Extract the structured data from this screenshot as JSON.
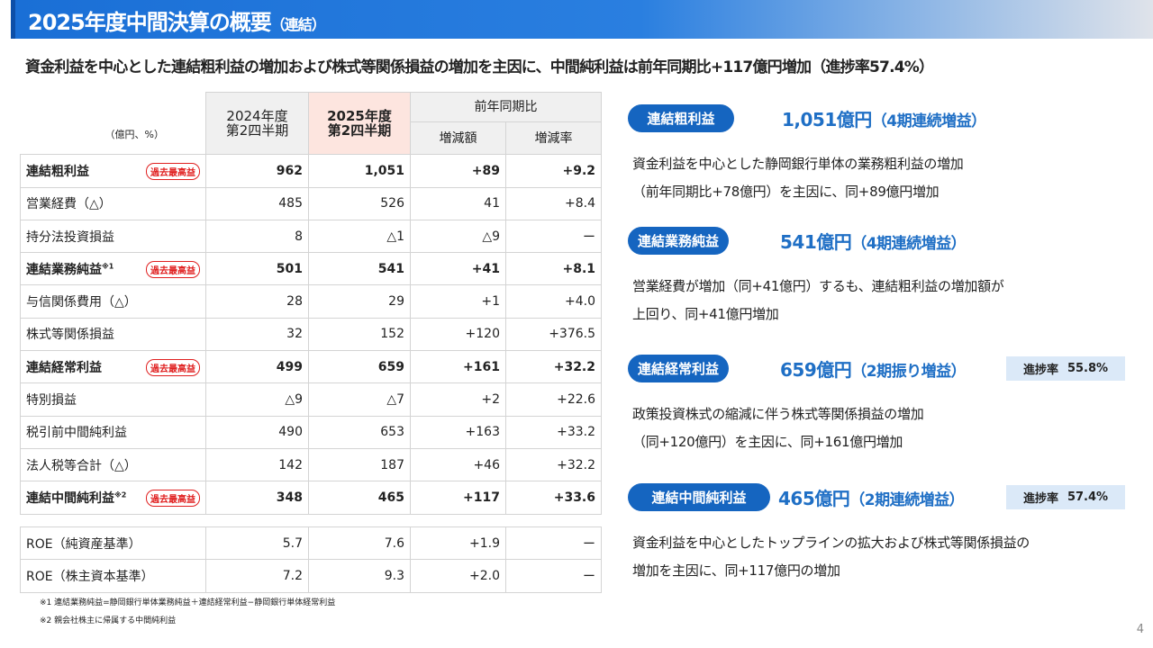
{
  "title": {
    "main": "2025年度中間決算の概要",
    "sub": "（連結）"
  },
  "subtitle": "資金利益を中心とした連結粗利益の増加および株式等関係損益の増加を主因に、中間純利益は前年同期比+117億円増加（進捗率57.4%）",
  "table": {
    "unit": "（億円、%）",
    "col_2024": [
      "2024年度",
      "第2四半期"
    ],
    "col_2025": [
      "2025年度",
      "第2四半期"
    ],
    "yoy": "前年同期比",
    "yoy_amount": "増減額",
    "yoy_rate": "増減率",
    "badge": "過去最高益",
    "rows": [
      {
        "label": "連結粗利益",
        "sup": "",
        "bold": true,
        "badge": true,
        "v": [
          "962",
          "1,051",
          "+89",
          "+9.2"
        ]
      },
      {
        "label": "営業経費（△）",
        "sup": "",
        "bold": false,
        "badge": false,
        "v": [
          "485",
          "526",
          "41",
          "+8.4"
        ]
      },
      {
        "label": "持分法投資損益",
        "sup": "",
        "bold": false,
        "badge": false,
        "v": [
          "8",
          "△1",
          "△9",
          "ー"
        ]
      },
      {
        "label": "連結業務純益",
        "sup": "※1",
        "bold": true,
        "badge": true,
        "v": [
          "501",
          "541",
          "+41",
          "+8.1"
        ]
      },
      {
        "label": "与信関係費用（△）",
        "sup": "",
        "bold": false,
        "badge": false,
        "v": [
          "28",
          "29",
          "+1",
          "+4.0"
        ]
      },
      {
        "label": "株式等関係損益",
        "sup": "",
        "bold": false,
        "badge": false,
        "v": [
          "32",
          "152",
          "+120",
          "+376.5"
        ]
      },
      {
        "label": "連結経常利益",
        "sup": "",
        "bold": true,
        "badge": true,
        "v": [
          "499",
          "659",
          "+161",
          "+32.2"
        ]
      },
      {
        "label": "特別損益",
        "sup": "",
        "bold": false,
        "badge": false,
        "v": [
          "△9",
          "△7",
          "+2",
          "+22.6"
        ]
      },
      {
        "label": "税引前中間純利益",
        "sup": "",
        "bold": false,
        "badge": false,
        "v": [
          "490",
          "653",
          "+163",
          "+33.2"
        ]
      },
      {
        "label": "法人税等合計（△）",
        "sup": "",
        "bold": false,
        "badge": false,
        "v": [
          "142",
          "187",
          "+46",
          "+32.2"
        ]
      },
      {
        "label": "連結中間純利益",
        "sup": "※2",
        "bold": true,
        "badge": true,
        "v": [
          "348",
          "465",
          "+117",
          "+33.6"
        ]
      }
    ],
    "roe_rows": [
      {
        "label": "ROE（純資産基準）",
        "v": [
          "5.7",
          "7.6",
          "+1.9",
          "ー"
        ]
      },
      {
        "label": "ROE（株主資本基準）",
        "v": [
          "7.2",
          "9.3",
          "+2.0",
          "ー"
        ]
      }
    ]
  },
  "footnotes": [
    "※1 連結業務純益=静岡銀行単体業務純益＋連結経常利益−静岡銀行単体経常利益",
    "※2 親会社株主に帰属する中間純利益"
  ],
  "highlights": [
    {
      "pill": "連結粗利益",
      "value": "1,051億円",
      "note": "（4期連続増益）",
      "progress_label": "",
      "progress": "",
      "body": [
        "資金利益を中心とした静岡銀行単体の業務粗利益の増加",
        "（前年同期比+78億円）を主因に、同+89億円増加"
      ]
    },
    {
      "pill": "連結業務純益",
      "value": "541億円",
      "note": "（4期連続増益）",
      "progress_label": "",
      "progress": "",
      "body": [
        "営業経費が増加（同+41億円）するも、連結粗利益の増加額が",
        "上回り、同+41億円増加"
      ]
    },
    {
      "pill": "連結経常利益",
      "value": "659億円",
      "note": "（2期振り増益）",
      "progress_label": "進捗率",
      "progress": "55.8%",
      "body": [
        "政策投資株式の縮減に伴う株式等関係損益の増加",
        "（同+120億円）を主因に、同+161億円増加"
      ]
    },
    {
      "pill": "連結中間純利益",
      "value": "465億円",
      "note": "（2期連続増益）",
      "progress_label": "進捗率",
      "progress": "57.4%",
      "body": [
        "資金利益を中心としたトップラインの拡大および株式等関係損益の",
        "増加を主因に、同+117億円の増加"
      ]
    }
  ],
  "colors": {
    "accent": "#1565c0",
    "headline": "#1f6fc5",
    "badge": "#e02020",
    "highlight_col": "#fde5df",
    "progress_bg": "#dbe9f8"
  },
  "page_number": "4"
}
